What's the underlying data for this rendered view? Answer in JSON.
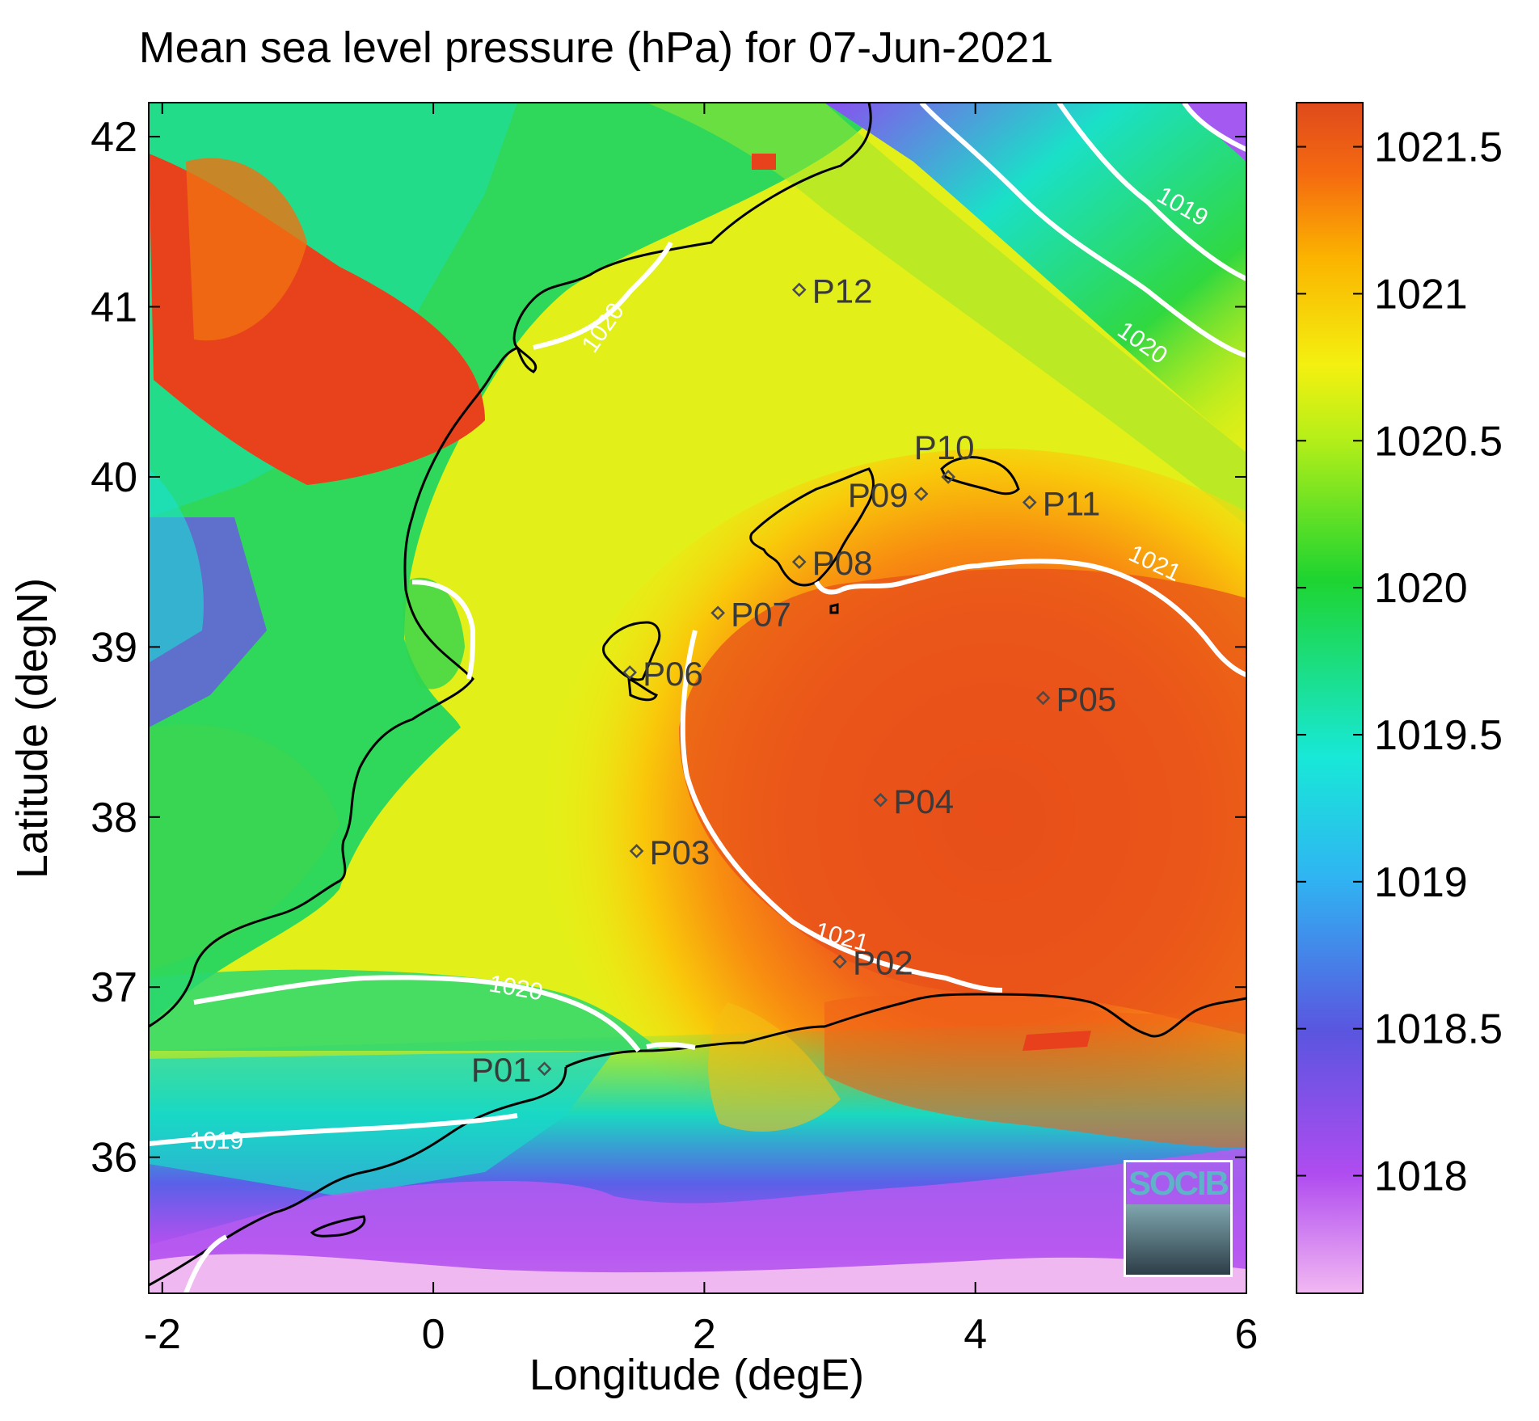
{
  "title": "Mean sea level pressure (hPa) for 07-Jun-2021",
  "xlabel": "Longitude (degE)",
  "ylabel": "Latitude (degN)",
  "logo_text": "SOCIB",
  "map": {
    "lon_range": [
      -2.1,
      6.0
    ],
    "lat_range": [
      35.2,
      42.2
    ],
    "x_ticks": [
      {
        "v": -2,
        "label": "-2"
      },
      {
        "v": 0,
        "label": "0"
      },
      {
        "v": 2,
        "label": "2"
      },
      {
        "v": 4,
        "label": "4"
      },
      {
        "v": 6,
        "label": "6"
      }
    ],
    "y_ticks": [
      {
        "v": 36,
        "label": "36"
      },
      {
        "v": 37,
        "label": "37"
      },
      {
        "v": 38,
        "label": "38"
      },
      {
        "v": 39,
        "label": "39"
      },
      {
        "v": 40,
        "label": "40"
      },
      {
        "v": 41,
        "label": "41"
      },
      {
        "v": 42,
        "label": "42"
      }
    ],
    "contour_labels": [
      {
        "text": "1020",
        "lon": 1.3,
        "lat": 40.85,
        "rot": -55
      },
      {
        "text": "1019",
        "lon": 5.5,
        "lat": 41.55,
        "rot": 30
      },
      {
        "text": "1020",
        "lon": 5.2,
        "lat": 40.75,
        "rot": 35
      },
      {
        "text": "1021",
        "lon": 5.3,
        "lat": 39.45,
        "rot": 25
      },
      {
        "text": "1021",
        "lon": 3.0,
        "lat": 37.25,
        "rot": 15
      },
      {
        "text": "1020",
        "lon": 0.6,
        "lat": 36.95,
        "rot": 10
      },
      {
        "text": "1019",
        "lon": -1.6,
        "lat": 36.05,
        "rot": 0
      }
    ],
    "points": [
      {
        "id": "P01",
        "lon": 0.82,
        "lat": 36.52,
        "side": "left"
      },
      {
        "id": "P02",
        "lon": 3.0,
        "lat": 37.15,
        "side": "right"
      },
      {
        "id": "P03",
        "lon": 1.5,
        "lat": 37.8,
        "side": "right"
      },
      {
        "id": "P04",
        "lon": 3.3,
        "lat": 38.1,
        "side": "right"
      },
      {
        "id": "P05",
        "lon": 4.5,
        "lat": 38.7,
        "side": "right"
      },
      {
        "id": "P06",
        "lon": 1.45,
        "lat": 38.85,
        "side": "right"
      },
      {
        "id": "P07",
        "lon": 2.1,
        "lat": 39.2,
        "side": "right"
      },
      {
        "id": "P08",
        "lon": 2.7,
        "lat": 39.5,
        "side": "right"
      },
      {
        "id": "P09",
        "lon": 3.6,
        "lat": 39.9,
        "side": "left"
      },
      {
        "id": "P10",
        "lon": 3.8,
        "lat": 40.0,
        "side": "top"
      },
      {
        "id": "P11",
        "lon": 4.4,
        "lat": 39.85,
        "side": "right"
      },
      {
        "id": "P12",
        "lon": 2.7,
        "lat": 41.1,
        "side": "right"
      }
    ]
  },
  "colorbar": {
    "range": [
      1017.6,
      1021.65
    ],
    "ticks": [
      {
        "v": 1018,
        "label": "1018"
      },
      {
        "v": 1018.5,
        "label": "1018.5"
      },
      {
        "v": 1019,
        "label": "1019"
      },
      {
        "v": 1019.5,
        "label": "1019.5"
      },
      {
        "v": 1020,
        "label": "1020"
      },
      {
        "v": 1020.5,
        "label": "1020.5"
      },
      {
        "v": 1021,
        "label": "1021"
      },
      {
        "v": 1021.5,
        "label": "1021.5"
      }
    ]
  }
}
